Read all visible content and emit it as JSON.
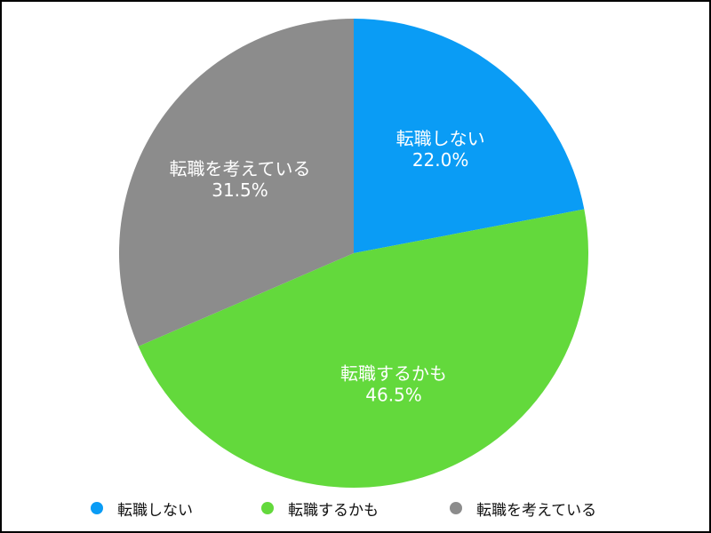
{
  "chart_data": {
    "type": "pie",
    "categories": [
      "転職しない",
      "転職するかも",
      "転職を考えている"
    ],
    "values": [
      22.0,
      46.5,
      31.5
    ],
    "value_labels": [
      "22.0%",
      "46.5%",
      "31.5%"
    ],
    "colors": [
      "#0a9cf5",
      "#63d93c",
      "#8c8c8c"
    ],
    "start_angle": "12 o'clock",
    "direction": "clockwise",
    "legend_position": "bottom"
  },
  "legend": [
    {
      "label": "転職しない",
      "color": "#0a9cf5"
    },
    {
      "label": "転職するかも",
      "color": "#63d93c"
    },
    {
      "label": "転職を考えている",
      "color": "#8c8c8c"
    }
  ]
}
